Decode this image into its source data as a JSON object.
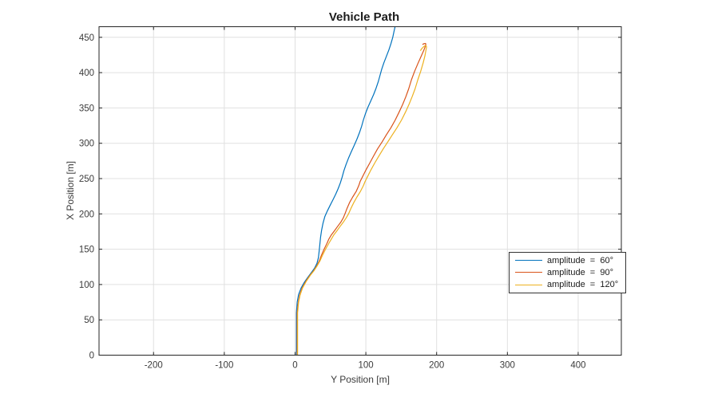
{
  "chart_data": {
    "type": "line",
    "title": "Vehicle Path",
    "xlabel": "Y Position [m]",
    "ylabel": "X Position [m]",
    "xlim": [
      -277,
      461
    ],
    "ylim": [
      0,
      465
    ],
    "xticks": [
      -200,
      -100,
      0,
      100,
      200,
      300,
      400
    ],
    "yticks": [
      0,
      50,
      100,
      150,
      200,
      250,
      300,
      350,
      400,
      450
    ],
    "grid": true,
    "grid_color": "#e0e0e0",
    "axis_color": "#262626",
    "tick_label_color": "#3b3b3b",
    "legend_position": "right-inside",
    "series": [
      {
        "label": "amplitude  =  60°",
        "color": "#0072BD",
        "points": [
          [
            2,
            0
          ],
          [
            2,
            40
          ],
          [
            2,
            60
          ],
          [
            3,
            75
          ],
          [
            5,
            86
          ],
          [
            8.5,
            95
          ],
          [
            13,
            103
          ],
          [
            18,
            110
          ],
          [
            23,
            117
          ],
          [
            27.5,
            123
          ],
          [
            31,
            130
          ],
          [
            33,
            138
          ],
          [
            34,
            147
          ],
          [
            35,
            157
          ],
          [
            36,
            167
          ],
          [
            37.5,
            177
          ],
          [
            39.5,
            187
          ],
          [
            42,
            196
          ],
          [
            45.5,
            204
          ],
          [
            49.5,
            212
          ],
          [
            53.5,
            220
          ],
          [
            57.5,
            228
          ],
          [
            61,
            236
          ],
          [
            64,
            244
          ],
          [
            66.5,
            252
          ],
          [
            69,
            261
          ],
          [
            72,
            270
          ],
          [
            75.5,
            279
          ],
          [
            79.5,
            288
          ],
          [
            83.5,
            297
          ],
          [
            87.5,
            306
          ],
          [
            91,
            315
          ],
          [
            94,
            324
          ],
          [
            96.5,
            333
          ],
          [
            99.5,
            342
          ],
          [
            103,
            351
          ],
          [
            107,
            360
          ],
          [
            111,
            369
          ],
          [
            114.5,
            378
          ],
          [
            117.5,
            387
          ],
          [
            120,
            396
          ],
          [
            122.5,
            405
          ],
          [
            125.5,
            414
          ],
          [
            129,
            423
          ],
          [
            132.5,
            432
          ],
          [
            135.5,
            441
          ],
          [
            138,
            450
          ],
          [
            140,
            459
          ],
          [
            141.5,
            466
          ]
        ]
      },
      {
        "label": "amplitude  =  90°",
        "color": "#D95319",
        "points": [
          [
            3,
            0
          ],
          [
            3,
            60
          ],
          [
            4.5,
            75
          ],
          [
            6.5,
            85
          ],
          [
            10,
            95
          ],
          [
            15.5,
            105
          ],
          [
            21,
            113
          ],
          [
            26.5,
            120
          ],
          [
            31,
            127
          ],
          [
            34.5,
            134
          ],
          [
            37,
            141
          ],
          [
            41,
            150
          ],
          [
            45,
            158
          ],
          [
            47.5,
            164
          ],
          [
            51,
            170
          ],
          [
            55.5,
            176
          ],
          [
            60,
            182
          ],
          [
            64.5,
            188
          ],
          [
            68,
            194
          ],
          [
            70.5,
            200
          ],
          [
            73.5,
            208
          ],
          [
            77,
            216
          ],
          [
            81.5,
            224
          ],
          [
            86.5,
            232
          ],
          [
            90,
            240
          ],
          [
            92,
            246
          ],
          [
            95,
            252
          ],
          [
            100,
            262
          ],
          [
            105.5,
            272
          ],
          [
            111,
            282
          ],
          [
            116.5,
            292
          ],
          [
            123,
            302
          ],
          [
            129,
            312
          ],
          [
            135.5,
            322
          ],
          [
            141.5,
            333
          ],
          [
            147,
            344
          ],
          [
            152,
            355
          ],
          [
            156.5,
            366
          ],
          [
            160.5,
            377
          ],
          [
            164.5,
            390
          ],
          [
            169,
            402
          ],
          [
            174,
            414
          ],
          [
            178.5,
            424
          ],
          [
            182,
            432
          ],
          [
            184,
            437
          ],
          [
            184.8,
            440
          ],
          [
            184.3,
            441.3
          ],
          [
            182,
            441
          ],
          [
            180,
            439.8
          ]
        ]
      },
      {
        "label": "amplitude  =  120°",
        "color": "#EDB120",
        "points": [
          [
            3.5,
            0
          ],
          [
            3.5,
            60
          ],
          [
            5,
            75
          ],
          [
            7,
            85
          ],
          [
            10.5,
            95
          ],
          [
            16,
            105
          ],
          [
            21.5,
            113
          ],
          [
            27,
            120
          ],
          [
            31.5,
            127
          ],
          [
            35.5,
            134
          ],
          [
            38.5,
            141
          ],
          [
            43,
            150
          ],
          [
            47.5,
            158
          ],
          [
            51,
            164
          ],
          [
            54.5,
            170
          ],
          [
            59,
            176
          ],
          [
            63.5,
            182
          ],
          [
            68,
            188
          ],
          [
            72,
            194
          ],
          [
            75.5,
            200
          ],
          [
            79,
            208
          ],
          [
            83,
            216
          ],
          [
            87.5,
            224
          ],
          [
            92.5,
            232
          ],
          [
            96.5,
            240
          ],
          [
            99,
            246
          ],
          [
            102,
            252
          ],
          [
            107,
            262
          ],
          [
            112.5,
            272
          ],
          [
            118.5,
            282
          ],
          [
            124.5,
            292
          ],
          [
            131,
            302
          ],
          [
            137.5,
            312
          ],
          [
            144,
            322
          ],
          [
            150.5,
            333
          ],
          [
            156,
            344
          ],
          [
            161,
            355
          ],
          [
            165.5,
            366
          ],
          [
            169.5,
            377
          ],
          [
            173.5,
            390
          ],
          [
            177.5,
            402
          ],
          [
            181,
            414
          ],
          [
            183.5,
            424
          ],
          [
            185,
            432
          ],
          [
            185.8,
            436.5
          ],
          [
            185,
            438.2
          ],
          [
            182.5,
            437.5
          ],
          [
            179.5,
            434.5
          ],
          [
            177,
            431
          ]
        ]
      }
    ]
  }
}
